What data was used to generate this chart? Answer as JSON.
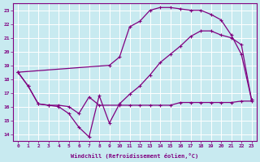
{
  "bg_color": "#c8eaf0",
  "grid_color": "#ffffff",
  "line_color": "#800080",
  "xlabel": "Windchill (Refroidissement éolien,°C)",
  "xlim": [
    -0.5,
    23.5
  ],
  "ylim": [
    13.5,
    23.5
  ],
  "yticks": [
    14,
    15,
    16,
    17,
    18,
    19,
    20,
    21,
    22,
    23
  ],
  "xticks": [
    0,
    1,
    2,
    3,
    4,
    5,
    6,
    7,
    8,
    9,
    10,
    11,
    12,
    13,
    14,
    15,
    16,
    17,
    18,
    19,
    20,
    21,
    22,
    23
  ],
  "line1_x": [
    0,
    1,
    2,
    3,
    4,
    5,
    6,
    7,
    8,
    10,
    11,
    12,
    13,
    14,
    15,
    16,
    17,
    18,
    19,
    20,
    21,
    22,
    23
  ],
  "line1_y": [
    18.5,
    17.5,
    16.2,
    16.1,
    16.1,
    16.0,
    15.5,
    16.7,
    16.1,
    16.1,
    16.1,
    16.1,
    16.1,
    16.1,
    16.1,
    16.3,
    16.3,
    16.3,
    16.3,
    16.3,
    16.3,
    16.4,
    16.4
  ],
  "line2_x": [
    0,
    1,
    2,
    3,
    4,
    5,
    6,
    7,
    8,
    9,
    10,
    11,
    12,
    13,
    14,
    15,
    16,
    17,
    18,
    19,
    20,
    21,
    22,
    23
  ],
  "line2_y": [
    18.5,
    17.5,
    16.2,
    16.1,
    16.0,
    15.5,
    14.5,
    13.8,
    16.8,
    14.8,
    16.2,
    16.9,
    17.5,
    18.3,
    19.2,
    19.8,
    20.4,
    21.1,
    21.5,
    21.5,
    21.2,
    21.0,
    20.5,
    16.5
  ],
  "line3_x": [
    0,
    9,
    10,
    11,
    12,
    13,
    14,
    15,
    16,
    17,
    18,
    19,
    20,
    21,
    22,
    23
  ],
  "line3_y": [
    18.5,
    19.0,
    19.6,
    21.8,
    22.2,
    23.0,
    23.2,
    23.2,
    23.1,
    23.0,
    23.0,
    22.7,
    22.3,
    21.2,
    19.8,
    16.5
  ]
}
